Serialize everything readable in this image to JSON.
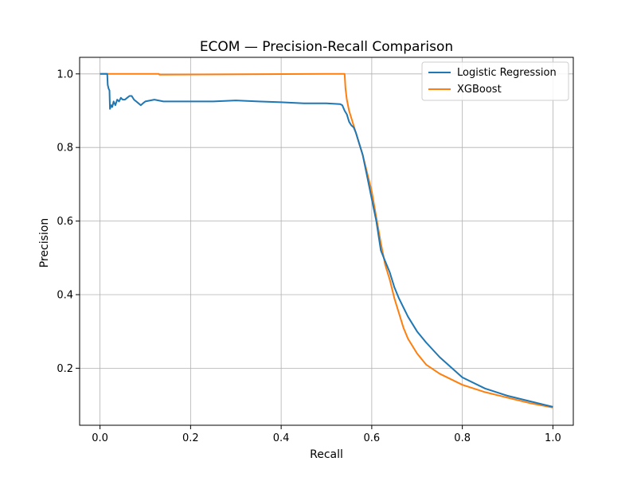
{
  "chart_data": {
    "type": "line",
    "title": "ECOM — Precision-Recall Comparison",
    "xlabel": "Recall",
    "ylabel": "Precision",
    "xlim": [
      -0.045,
      1.045
    ],
    "ylim": [
      0.045,
      1.045
    ],
    "grid": true,
    "legend_position": "top-right",
    "xticks": [
      0.0,
      0.2,
      0.4,
      0.6,
      0.8,
      1.0
    ],
    "xtick_labels": [
      "0.0",
      "0.2",
      "0.4",
      "0.6",
      "0.8",
      "1.0"
    ],
    "yticks": [
      0.2,
      0.4,
      0.6,
      0.8,
      1.0
    ],
    "ytick_labels": [
      "0.2",
      "0.4",
      "0.6",
      "0.8",
      "1.0"
    ],
    "series": [
      {
        "name": "Logistic Regression",
        "color": "#1f77b4",
        "x": [
          0.0,
          0.016,
          0.017,
          0.019,
          0.021,
          0.022,
          0.025,
          0.027,
          0.03,
          0.034,
          0.038,
          0.042,
          0.046,
          0.05,
          0.055,
          0.06,
          0.065,
          0.07,
          0.075,
          0.08,
          0.085,
          0.09,
          0.095,
          0.1,
          0.12,
          0.14,
          0.16,
          0.2,
          0.25,
          0.3,
          0.35,
          0.4,
          0.45,
          0.5,
          0.53,
          0.535,
          0.54,
          0.545,
          0.55,
          0.555,
          0.56,
          0.565,
          0.57,
          0.58,
          0.59,
          0.6,
          0.61,
          0.62,
          0.63,
          0.64,
          0.65,
          0.66,
          0.68,
          0.7,
          0.72,
          0.75,
          0.8,
          0.85,
          0.9,
          0.95,
          1.0
        ],
        "y": [
          1.0,
          1.0,
          0.97,
          0.96,
          0.955,
          0.905,
          0.915,
          0.91,
          0.925,
          0.915,
          0.93,
          0.925,
          0.935,
          0.93,
          0.93,
          0.935,
          0.94,
          0.94,
          0.93,
          0.925,
          0.92,
          0.915,
          0.92,
          0.925,
          0.93,
          0.925,
          0.925,
          0.925,
          0.925,
          0.928,
          0.925,
          0.923,
          0.92,
          0.92,
          0.918,
          0.915,
          0.9,
          0.89,
          0.87,
          0.86,
          0.855,
          0.84,
          0.82,
          0.78,
          0.72,
          0.66,
          0.6,
          0.52,
          0.49,
          0.46,
          0.42,
          0.39,
          0.34,
          0.3,
          0.27,
          0.23,
          0.175,
          0.145,
          0.125,
          0.11,
          0.095
        ]
      },
      {
        "name": "XGBoost",
        "color": "#ff7f0e",
        "x": [
          0.0,
          0.13,
          0.131,
          0.5,
          0.54,
          0.542,
          0.545,
          0.55,
          0.56,
          0.57,
          0.58,
          0.59,
          0.6,
          0.61,
          0.62,
          0.63,
          0.64,
          0.65,
          0.66,
          0.67,
          0.68,
          0.7,
          0.72,
          0.75,
          0.8,
          0.85,
          0.9,
          0.95,
          1.0
        ],
        "y": [
          1.0,
          1.0,
          0.998,
          1.0,
          1.0,
          0.96,
          0.93,
          0.9,
          0.86,
          0.82,
          0.78,
          0.73,
          0.68,
          0.61,
          0.54,
          0.48,
          0.44,
          0.39,
          0.35,
          0.31,
          0.28,
          0.24,
          0.21,
          0.185,
          0.155,
          0.135,
          0.12,
          0.105,
          0.093
        ]
      }
    ]
  }
}
